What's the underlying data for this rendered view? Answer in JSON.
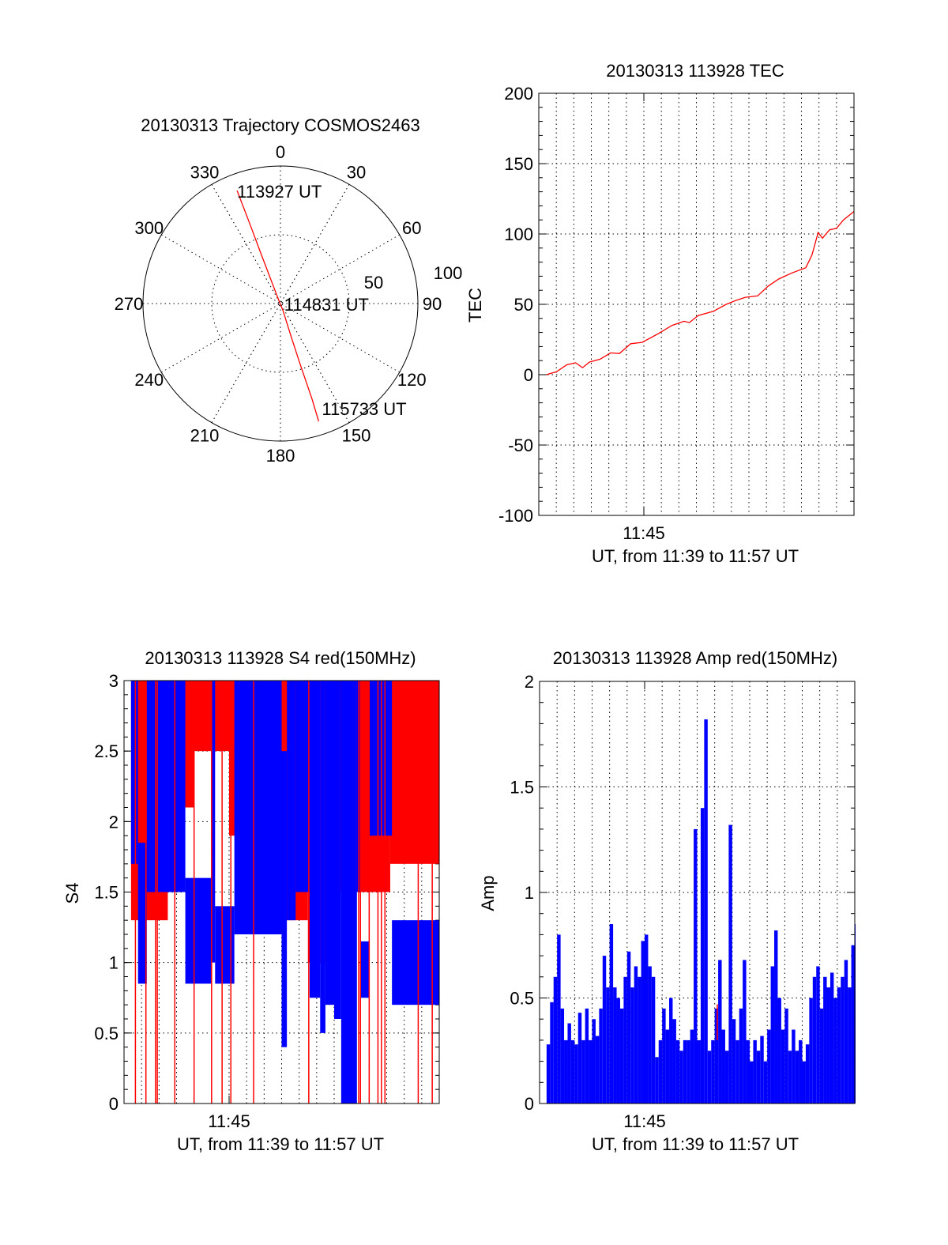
{
  "chart_data": [
    {
      "type": "polar",
      "title": "20130313 Trajectory COSMOS2463",
      "angle_labels": [
        "0",
        "30",
        "60",
        "90",
        "120",
        "150",
        "180",
        "210",
        "240",
        "270",
        "300",
        "330"
      ],
      "radial_labels": [
        {
          "value": 50,
          "text": "50"
        },
        {
          "value": 100,
          "text": "100"
        }
      ],
      "radial_max": 100,
      "series_color": "#ff0000",
      "trajectory": [
        [
          339,
          88
        ],
        [
          339,
          62
        ],
        [
          338.7,
          39.5
        ],
        [
          338,
          15
        ],
        [
          330,
          2
        ],
        [
          160,
          5
        ],
        [
          162,
          25
        ],
        [
          162,
          46
        ],
        [
          161.7,
          73
        ],
        [
          162,
          90
        ]
      ],
      "time_labels": [
        {
          "text": "113927 UT",
          "az": 339,
          "r": 88
        },
        {
          "text": "114831 UT",
          "az": 90,
          "r": 1
        },
        {
          "text": "115733 UT",
          "az": 162,
          "r": 90
        }
      ]
    },
    {
      "type": "line",
      "title": "20130313 113928 TEC",
      "ylabel": "TEC",
      "xlabel": "UT, from 11:39 to 11:57 UT",
      "xtick_label": "11:45",
      "xtick_minute": 6,
      "xlim_minutes": [
        0,
        18
      ],
      "ylim": [
        -100,
        200
      ],
      "yticks": [
        -100,
        -50,
        0,
        50,
        100,
        150,
        200
      ],
      "minor_step": 10,
      "color": "#ff0000",
      "x_minutes": [
        0.43,
        1.0,
        1.6,
        2.1,
        2.5,
        2.9,
        3.5,
        4.1,
        4.6,
        5.25,
        5.9,
        6.8,
        7.6,
        8.3,
        8.6,
        9.1,
        9.96,
        10.7,
        11.3,
        11.8,
        12.5,
        13.1,
        13.7,
        14.4,
        15.25,
        15.6,
        15.95,
        16.2,
        16.6,
        17.0,
        17.4,
        18.0
      ],
      "values": [
        0,
        2,
        7,
        8.5,
        5,
        9,
        11,
        15.5,
        15,
        22,
        23,
        29,
        35,
        38,
        37,
        42,
        45,
        50,
        53,
        55,
        56,
        63,
        68,
        72,
        76,
        85,
        101,
        97,
        103,
        104,
        110,
        116
      ]
    },
    {
      "type": "range-bars",
      "title": "20130313 113928 S4 red(150MHz)",
      "ylabel": "S4",
      "xlabel": "UT, from 11:39 to 11:57 UT",
      "xtick_label": "11:45",
      "xtick_minute": 6,
      "xlim_minutes": [
        0,
        18
      ],
      "ylim": [
        0,
        3
      ],
      "yticks": [
        0,
        0.5,
        1,
        1.5,
        2,
        2.5,
        3
      ],
      "ytick_labels": [
        "0",
        "0.5",
        "1",
        "1.5",
        "2",
        "2.5",
        "3"
      ],
      "minor_step": 0.1,
      "series": [
        {
          "name": "red",
          "color": "#ff0000",
          "ranges": [
            [
              0.4,
              2.5,
              1.3,
              3
            ],
            [
              2.5,
              4.0,
              2.1,
              3
            ],
            [
              4.0,
              6.0,
              2.5,
              3
            ],
            [
              6.0,
              6.5,
              1.9,
              3
            ],
            [
              6.5,
              8.5,
              2.0,
              3
            ],
            [
              8.5,
              10.5,
              1.3,
              3
            ],
            [
              10.5,
              12.0,
              1.0,
              3
            ],
            [
              12.0,
              14.0,
              1.5,
              3
            ],
            [
              14.0,
              15.2,
              1.5,
              3
            ],
            [
              15.2,
              18.0,
              1.7,
              3
            ]
          ],
          "full_lines": [
            0.65,
            1.25,
            1.8,
            1.9,
            2.9,
            4.0,
            5.0,
            5.6,
            6.1,
            7.4,
            10.55,
            13.4,
            13.5,
            14.0,
            14.5,
            14.7,
            14.9,
            16.8,
            17.6
          ]
        },
        {
          "name": "blue",
          "color": "#0000ff",
          "ranges": [
            [
              0.4,
              0.8,
              1.7,
              3
            ],
            [
              0.8,
              1.3,
              0.85,
              1.85
            ],
            [
              1.3,
              3.5,
              1.5,
              3
            ],
            [
              3.5,
              5.0,
              0.85,
              1.6
            ],
            [
              5.0,
              5.2,
              1.0,
              3
            ],
            [
              5.2,
              6.3,
              0.85,
              1.4
            ],
            [
              6.3,
              9.0,
              1.2,
              3
            ],
            [
              9.0,
              9.3,
              0.4,
              2.5
            ],
            [
              9.3,
              9.8,
              1.3,
              3
            ],
            [
              9.8,
              10.6,
              1.5,
              3
            ],
            [
              10.6,
              11.2,
              0.75,
              3
            ],
            [
              11.2,
              11.5,
              0.5,
              3
            ],
            [
              11.5,
              12.0,
              0.7,
              3
            ],
            [
              12.0,
              12.4,
              0.6,
              3
            ],
            [
              12.4,
              13.3,
              0,
              3
            ],
            [
              13.3,
              13.5,
              1.5,
              3
            ],
            [
              13.5,
              14.0,
              0.75,
              1.15
            ],
            [
              14.0,
              15.3,
              1.9,
              3
            ],
            [
              15.3,
              18.0,
              0.7,
              1.3
            ]
          ]
        }
      ]
    },
    {
      "type": "bar",
      "title": "20130313 113928 Amp red(150MHz)",
      "ylabel": "Amp",
      "xlabel": "UT, from 11:39 to 11:57 UT",
      "xtick_label": "11:45",
      "xtick_minute": 6,
      "xlim_minutes": [
        0,
        18
      ],
      "ylim": [
        0,
        2
      ],
      "yticks": [
        0,
        0.5,
        1,
        1.5,
        2
      ],
      "ytick_labels": [
        "0",
        "0.5",
        "1",
        "1.5",
        "2"
      ],
      "minor_step": 0.1,
      "x_start_minute": 0.4,
      "x_step_minute": 0.2,
      "color": "#0000ff",
      "values": [
        0.28,
        0.48,
        0.6,
        0.8,
        0.45,
        0.3,
        0.38,
        0.3,
        0.28,
        0.43,
        0.3,
        0.45,
        0.3,
        0.4,
        0.32,
        0.45,
        0.7,
        0.55,
        0.85,
        0.55,
        0.5,
        0.45,
        0.6,
        0.72,
        0.55,
        0.65,
        0.6,
        0.77,
        0.8,
        0.65,
        0.6,
        0.22,
        0.3,
        0.45,
        0.35,
        0.5,
        0.4,
        0.3,
        0.25,
        0.3,
        0.3,
        0.35,
        1.3,
        0.3,
        1.4,
        1.82,
        0.25,
        0.3,
        0.45,
        0.68,
        0.35,
        0.25,
        1.32,
        0.4,
        0.3,
        0.45,
        0.68,
        0.3,
        0.2,
        0.3,
        0.25,
        0.32,
        0.2,
        0.35,
        0.65,
        0.82,
        0.5,
        0.35,
        0.45,
        0.25,
        0.35,
        0.25,
        0.3,
        0.2,
        0.28,
        0.5,
        0.6,
        0.65,
        0.45,
        0.6,
        0.55,
        0.62,
        0.5,
        0.55,
        0.6,
        0.68,
        0.55,
        0.75,
        0.85
      ],
      "red_spikes": [
        [
          10.15,
          0.47
        ]
      ]
    }
  ]
}
